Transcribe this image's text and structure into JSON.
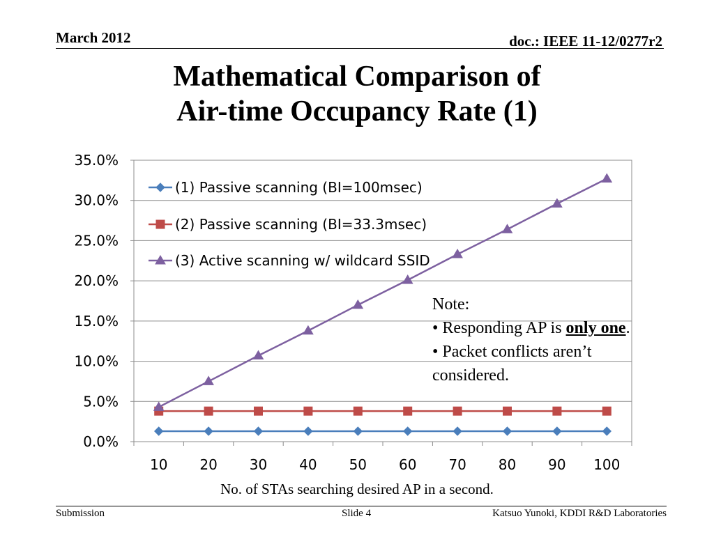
{
  "header": {
    "date": "March 2012",
    "doc": "doc.: IEEE 11-12/0277r2"
  },
  "title": {
    "line1": "Mathematical Comparison of",
    "line2": "Air-time Occupancy Rate (1)"
  },
  "note": {
    "heading": "Note:",
    "bullet1_prefix": "• Responding AP is ",
    "bullet1_emphasis": "only one",
    "bullet1_suffix": ".",
    "bullet2_line1": "• Packet conflicts aren’t",
    "bullet2_line2": "considered."
  },
  "footer": {
    "left": "Submission",
    "center": "Slide 4",
    "right": "Katsuo Yunoki, KDDI R&D Laboratories"
  },
  "chart_data": {
    "type": "line",
    "title": "",
    "xlabel": "No. of STAs searching desired AP in a second.",
    "ylabel": "",
    "x": [
      10,
      20,
      30,
      40,
      50,
      60,
      70,
      80,
      90,
      100
    ],
    "ylim": [
      0,
      35
    ],
    "yticks": [
      0,
      5,
      10,
      15,
      20,
      25,
      30,
      35
    ],
    "ytick_labels": [
      "0.0%",
      "5.0%",
      "10.0%",
      "15.0%",
      "20.0%",
      "25.0%",
      "30.0%",
      "35.0%"
    ],
    "grid": "horizontal",
    "legend_position": "top-left",
    "series": [
      {
        "name": "(1) Passive scanning (BI=100msec)",
        "marker": "diamond",
        "color": "#4a7ebb",
        "values": [
          1.3,
          1.3,
          1.3,
          1.3,
          1.3,
          1.3,
          1.3,
          1.3,
          1.3,
          1.3
        ]
      },
      {
        "name": "(2) Passive scanning (BI=33.3msec)",
        "marker": "square",
        "color": "#be4b48",
        "values": [
          3.8,
          3.8,
          3.8,
          3.8,
          3.8,
          3.8,
          3.8,
          3.8,
          3.8,
          3.8
        ]
      },
      {
        "name": "(3) Active scanning w/ wildcard SSID",
        "marker": "triangle",
        "color": "#7d60a0",
        "values": [
          4.3,
          7.5,
          10.7,
          13.8,
          17.0,
          20.1,
          23.3,
          26.4,
          29.6,
          32.7
        ]
      }
    ]
  }
}
